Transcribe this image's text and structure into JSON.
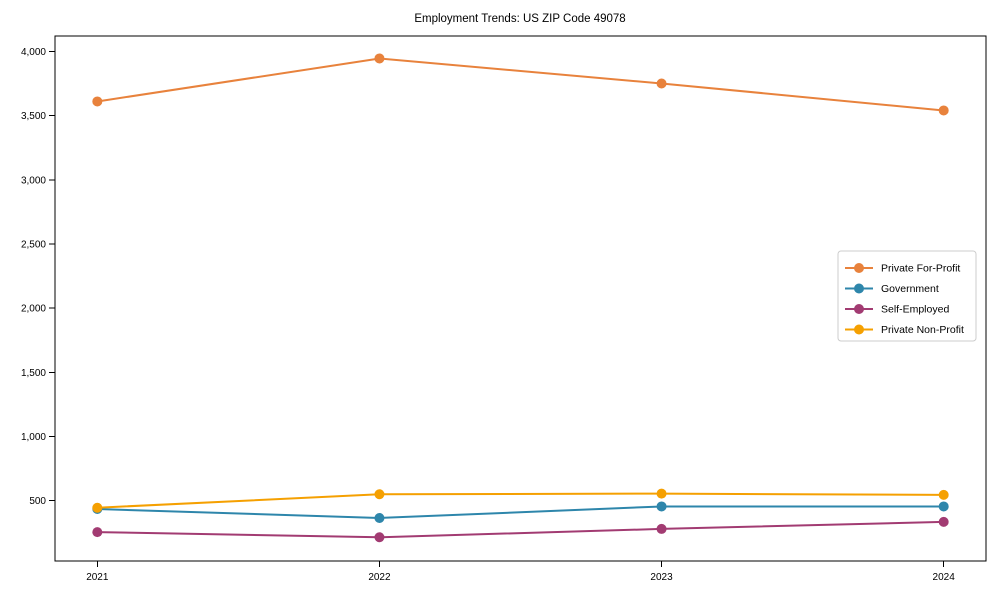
{
  "chart_data": {
    "type": "line",
    "title": "Employment Trends: US ZIP Code 49078",
    "xlabel": "",
    "ylabel": "",
    "x": [
      2021,
      2022,
      2023,
      2024
    ],
    "x_tick_labels": [
      "2021",
      "2022",
      "2023",
      "2024"
    ],
    "series": [
      {
        "name": "Private For-Profit",
        "color": "#E8823C",
        "values": [
          3610,
          3945,
          3750,
          3540
        ]
      },
      {
        "name": "Government",
        "color": "#2E86AB",
        "values": [
          435,
          365,
          455,
          455
        ]
      },
      {
        "name": "Self-Employed",
        "color": "#A23B72",
        "values": [
          255,
          215,
          280,
          335
        ]
      },
      {
        "name": "Private Non-Profit",
        "color": "#F5A001",
        "values": [
          445,
          550,
          555,
          545
        ]
      }
    ],
    "yticks": [
      500,
      1000,
      1500,
      2000,
      2500,
      3000,
      3500,
      4000
    ],
    "ytick_labels": [
      "500",
      "1,000",
      "1,500",
      "2,000",
      "2,500",
      "3,000",
      "3,500",
      "4,000"
    ],
    "ylim": [
      30,
      4120
    ],
    "xlim_index": [
      -0.15,
      3.15
    ],
    "grid": false,
    "marker": "circle",
    "legend": {
      "position": "center-right",
      "border_color": "#cccccc",
      "background": "#ffffff"
    },
    "axis_color": "#000000",
    "plot_background": "#ffffff"
  }
}
